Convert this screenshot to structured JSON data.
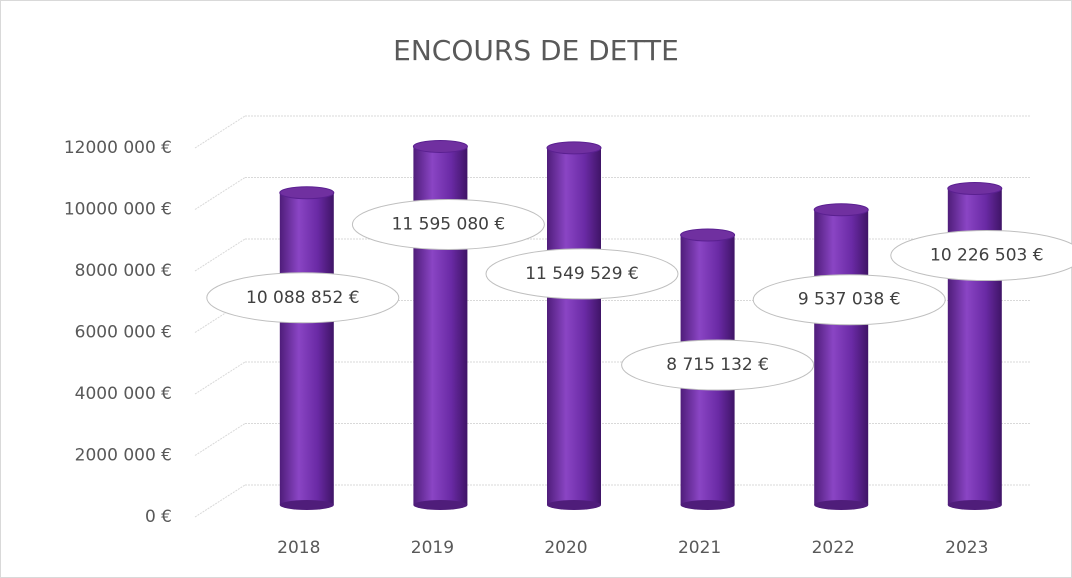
{
  "chart_data": {
    "type": "bar",
    "title": "ENCOURS DE DETTE",
    "categories": [
      "2018",
      "2019",
      "2020",
      "2021",
      "2022",
      "2023"
    ],
    "values": [
      10088852,
      11595080,
      11549529,
      8715132,
      9537038,
      10226503
    ],
    "value_labels": [
      "10 088 852 €",
      "11 595 080 €",
      "11 549 529 €",
      "8 715 132 €",
      "9 537 038 €",
      "10 226 503 €"
    ],
    "color": "#7030a0",
    "ylim": [
      0,
      12000000
    ],
    "yticks": [
      {
        "value": 0,
        "label": "0 €"
      },
      {
        "value": 2000000,
        "label": "2000 000 €"
      },
      {
        "value": 4000000,
        "label": "4000 000 €"
      },
      {
        "value": 6000000,
        "label": "6000 000 €"
      },
      {
        "value": 8000000,
        "label": "8000 000 €"
      },
      {
        "value": 10000000,
        "label": "10000 000 €"
      },
      {
        "value": 12000000,
        "label": "12000 000 €"
      }
    ],
    "grid": true
  }
}
